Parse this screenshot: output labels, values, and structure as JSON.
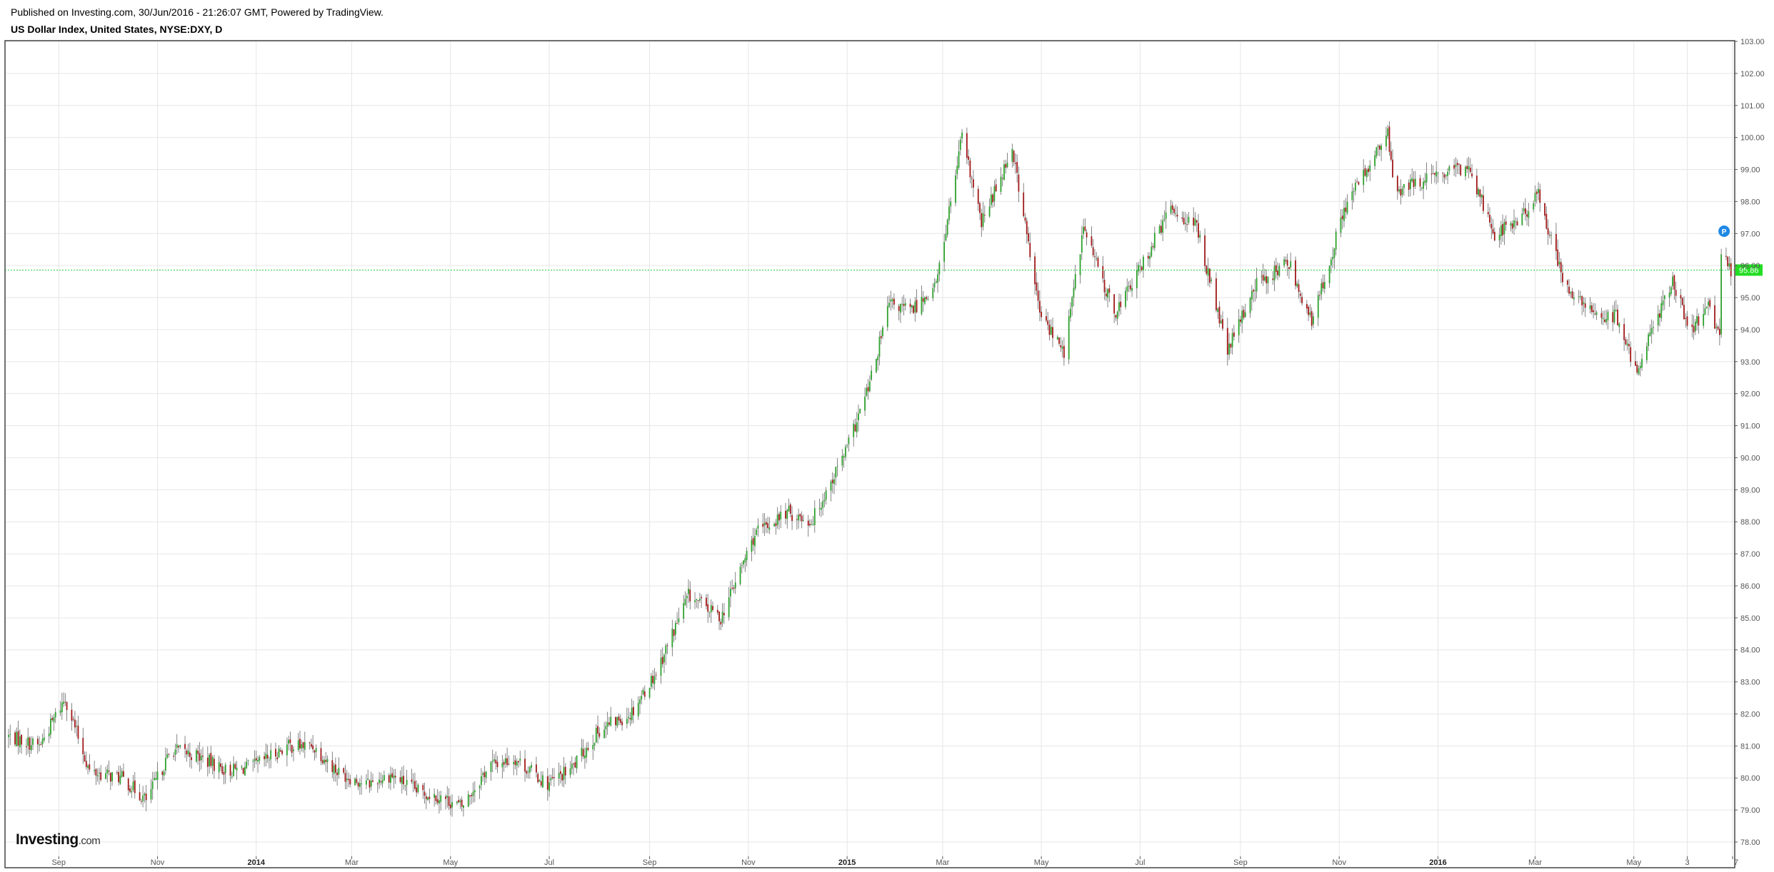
{
  "header": {
    "publish_line": "Published on Investing.com, 30/Jun/2016 - 21:26:07 GMT, Powered by TradingView.",
    "symbol_line": "US Dollar Index, United States, NYSE:DXY, D"
  },
  "logo": {
    "brand": "Investing",
    "suffix": ".com"
  },
  "marker": {
    "label": "P",
    "color": "#1e88e5"
  },
  "colors": {
    "up": "#2ca02c",
    "down": "#a01818",
    "grid": "#e6e6e6",
    "last_price_line": "#2ecc40",
    "last_price_bg": "#22dd22"
  },
  "chart_data": {
    "type": "candlestick",
    "title": "US Dollar Index, United States, NYSE:DXY, D",
    "interval": "D",
    "ylim": [
      77.5,
      103.0
    ],
    "y_ticks": [
      "103.00",
      "102.00",
      "101.00",
      "100.00",
      "99.00",
      "98.00",
      "97.00",
      "96.00",
      "95.00",
      "94.00",
      "93.00",
      "92.00",
      "91.00",
      "90.00",
      "89.00",
      "88.00",
      "87.00",
      "86.00",
      "85.00",
      "84.00",
      "83.00",
      "82.00",
      "81.00",
      "80.00",
      "79.00",
      "78.00"
    ],
    "x_ticks": [
      {
        "label": "Sep",
        "date": "2013-09-01",
        "bold": false
      },
      {
        "label": "Nov",
        "date": "2013-11-01",
        "bold": false
      },
      {
        "label": "2014",
        "date": "2014-01-01",
        "bold": true
      },
      {
        "label": "Mar",
        "date": "2014-03-01",
        "bold": false
      },
      {
        "label": "May",
        "date": "2014-05-01",
        "bold": false
      },
      {
        "label": "Jul",
        "date": "2014-07-01",
        "bold": false
      },
      {
        "label": "Sep",
        "date": "2014-09-01",
        "bold": false
      },
      {
        "label": "Nov",
        "date": "2014-11-01",
        "bold": false
      },
      {
        "label": "2015",
        "date": "2015-01-01",
        "bold": true
      },
      {
        "label": "Mar",
        "date": "2015-03-01",
        "bold": false
      },
      {
        "label": "May",
        "date": "2015-05-01",
        "bold": false
      },
      {
        "label": "Jul",
        "date": "2015-07-01",
        "bold": false
      },
      {
        "label": "Sep",
        "date": "2015-09-01",
        "bold": false
      },
      {
        "label": "Nov",
        "date": "2015-11-01",
        "bold": false
      },
      {
        "label": "2016",
        "date": "2016-01-01",
        "bold": true
      },
      {
        "label": "Mar",
        "date": "2016-03-01",
        "bold": false
      },
      {
        "label": "May",
        "date": "2016-05-01",
        "bold": false
      },
      {
        "label": "3",
        "date": "2016-06-03",
        "bold": false
      },
      {
        "label": "7",
        "date": "2016-07-01",
        "bold": false
      }
    ],
    "last_price": 95.86,
    "last_price_label": "95.86",
    "x_range": [
      "2013-08-01",
      "2016-07-01"
    ],
    "path_points": [
      {
        "date": "2013-08-01",
        "close": 81.3
      },
      {
        "date": "2013-08-20",
        "close": 81.0
      },
      {
        "date": "2013-09-05",
        "close": 82.5
      },
      {
        "date": "2013-09-20",
        "close": 80.2
      },
      {
        "date": "2013-10-10",
        "close": 80.0
      },
      {
        "date": "2013-10-25",
        "close": 79.3
      },
      {
        "date": "2013-11-10",
        "close": 80.9
      },
      {
        "date": "2013-11-25",
        "close": 80.7
      },
      {
        "date": "2013-12-15",
        "close": 80.2
      },
      {
        "date": "2014-01-01",
        "close": 80.4
      },
      {
        "date": "2014-01-20",
        "close": 81.0
      },
      {
        "date": "2014-02-05",
        "close": 81.0
      },
      {
        "date": "2014-02-20",
        "close": 80.2
      },
      {
        "date": "2014-03-10",
        "close": 79.8
      },
      {
        "date": "2014-03-25",
        "close": 80.1
      },
      {
        "date": "2014-04-10",
        "close": 79.6
      },
      {
        "date": "2014-04-25",
        "close": 79.4
      },
      {
        "date": "2014-05-08",
        "close": 79.1
      },
      {
        "date": "2014-05-25",
        "close": 80.4
      },
      {
        "date": "2014-06-10",
        "close": 80.6
      },
      {
        "date": "2014-06-30",
        "close": 79.8
      },
      {
        "date": "2014-07-15",
        "close": 80.3
      },
      {
        "date": "2014-08-01",
        "close": 81.5
      },
      {
        "date": "2014-08-20",
        "close": 82.0
      },
      {
        "date": "2014-09-05",
        "close": 83.3
      },
      {
        "date": "2014-09-25",
        "close": 85.7
      },
      {
        "date": "2014-10-15",
        "close": 85.0
      },
      {
        "date": "2014-11-05",
        "close": 87.6
      },
      {
        "date": "2014-11-25",
        "close": 88.3
      },
      {
        "date": "2014-12-10",
        "close": 88.0
      },
      {
        "date": "2015-01-01",
        "close": 90.3
      },
      {
        "date": "2015-01-15",
        "close": 92.3
      },
      {
        "date": "2015-01-27",
        "close": 94.8
      },
      {
        "date": "2015-02-10",
        "close": 94.6
      },
      {
        "date": "2015-02-25",
        "close": 95.4
      },
      {
        "date": "2015-03-13",
        "close": 100.0
      },
      {
        "date": "2015-03-25",
        "close": 97.3
      },
      {
        "date": "2015-04-13",
        "close": 99.7
      },
      {
        "date": "2015-04-30",
        "close": 94.5
      },
      {
        "date": "2015-05-15",
        "close": 93.3
      },
      {
        "date": "2015-05-27",
        "close": 97.2
      },
      {
        "date": "2015-06-15",
        "close": 94.5
      },
      {
        "date": "2015-06-30",
        "close": 95.8
      },
      {
        "date": "2015-07-20",
        "close": 97.8
      },
      {
        "date": "2015-08-05",
        "close": 97.2
      },
      {
        "date": "2015-08-24",
        "close": 93.3
      },
      {
        "date": "2015-09-10",
        "close": 95.4
      },
      {
        "date": "2015-10-01",
        "close": 96.1
      },
      {
        "date": "2015-10-15",
        "close": 94.2
      },
      {
        "date": "2015-11-05",
        "close": 97.9
      },
      {
        "date": "2015-12-01",
        "close": 100.1
      },
      {
        "date": "2015-12-05",
        "close": 98.3
      },
      {
        "date": "2015-12-20",
        "close": 98.6
      },
      {
        "date": "2016-01-20",
        "close": 99.1
      },
      {
        "date": "2016-02-05",
        "close": 97.0
      },
      {
        "date": "2016-02-20",
        "close": 97.4
      },
      {
        "date": "2016-03-03",
        "close": 98.2
      },
      {
        "date": "2016-03-20",
        "close": 95.3
      },
      {
        "date": "2016-04-05",
        "close": 94.5
      },
      {
        "date": "2016-04-20",
        "close": 94.4
      },
      {
        "date": "2016-05-02",
        "close": 92.7
      },
      {
        "date": "2016-05-25",
        "close": 95.6
      },
      {
        "date": "2016-06-05",
        "close": 93.8
      },
      {
        "date": "2016-06-15",
        "close": 94.8
      },
      {
        "date": "2016-06-23",
        "close": 93.7
      },
      {
        "date": "2016-06-24",
        "close": 96.5
      },
      {
        "date": "2016-06-30",
        "close": 95.86
      }
    ]
  }
}
